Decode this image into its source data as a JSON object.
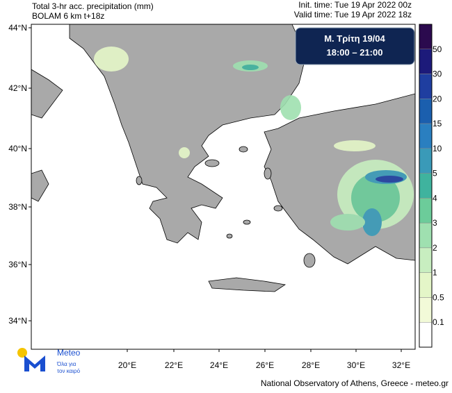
{
  "header": {
    "title_line1": "Total 3-hr acc. precipitation (mm)",
    "title_line2": "BOLAM 6 km t+18z",
    "init_time": "Init. time: Tue 19 Apr 2022 00z",
    "valid_time": "Valid time: Tue 19 Apr 2022 18z"
  },
  "info_box": {
    "day": "Μ. Τρίτη 19/04",
    "hours": "18:00 – 21:00"
  },
  "lat_labels": [
    "44°N",
    "42°N",
    "40°N",
    "38°N",
    "36°N",
    "34°N"
  ],
  "lon_labels": [
    "20°E",
    "22°E",
    "24°E",
    "26°E",
    "28°E",
    "30°E",
    "32°E"
  ],
  "legend": {
    "labels": [
      "50",
      "30",
      "20",
      "15",
      "10",
      "5",
      "4",
      "3",
      "2",
      "1",
      "0.5",
      "0.1"
    ],
    "colors": [
      "#2b0a4e",
      "#1c1a7a",
      "#1f3ea0",
      "#1b5fae",
      "#2a7fc0",
      "#3a9ab8",
      "#3fb39e",
      "#6ccc9a",
      "#9fe0b0",
      "#c8eec0",
      "#e4f6c8",
      "#f2fad8",
      "#ffffff"
    ]
  },
  "logo": {
    "name": "Meteo",
    "tagline1": "Όλα για",
    "tagline2": "τον καιρό"
  },
  "footer": "National Observatory of Athens, Greece - meteo.gr"
}
